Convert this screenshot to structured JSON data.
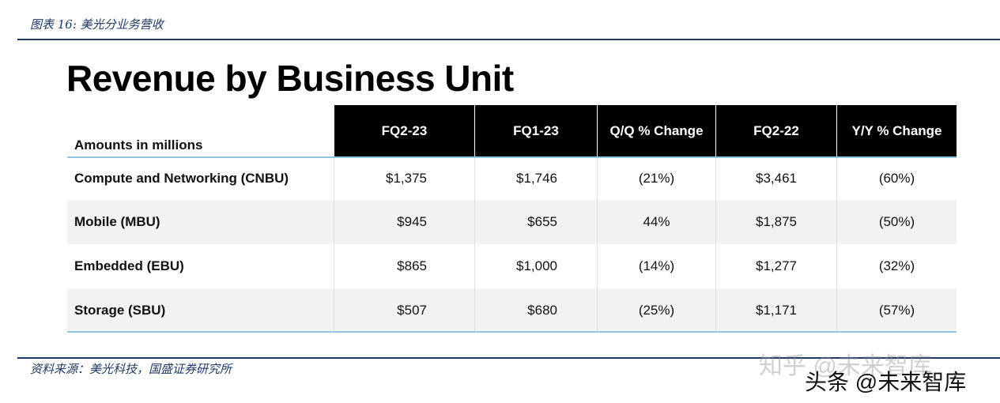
{
  "caption": "图表 16: 美光分业务营收",
  "title": "Revenue by Business Unit",
  "table": {
    "header": [
      "Amounts in millions",
      "FQ2-23",
      "FQ1-23",
      "Q/Q % Change",
      "FQ2-22",
      "Y/Y % Change"
    ],
    "rows": [
      [
        "Compute and Networking (CNBU)",
        "$1,375",
        "$1,746",
        "(21%)",
        "$3,461",
        "(60%)"
      ],
      [
        "Mobile (MBU)",
        "$945",
        "$655",
        "44%",
        "$1,875",
        "(50%)"
      ],
      [
        "Embedded (EBU)",
        "$865",
        "$1,000",
        "(14%)",
        "$1,277",
        "(32%)"
      ],
      [
        "Storage (SBU)",
        "$507",
        "$680",
        "(25%)",
        "$1,171",
        "(57%)"
      ]
    ]
  },
  "source": "资料来源：美光科技，国盛证券研究所",
  "watermarks": [
    "知乎 @未来智库",
    "头条 @未来智库"
  ]
}
